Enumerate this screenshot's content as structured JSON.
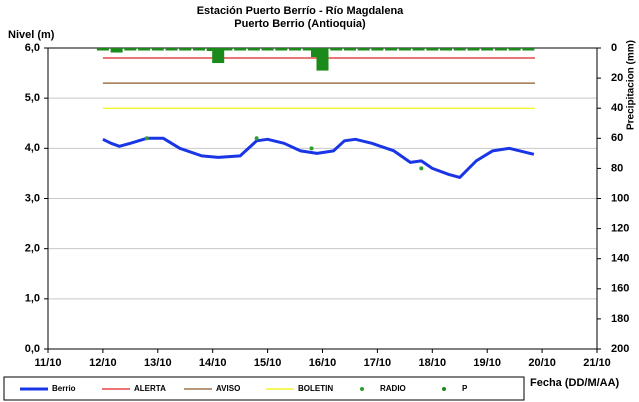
{
  "chart_data": {
    "type": "line",
    "title": "Estación Puerto Berrío - Río Magdalena",
    "subtitle": "Puerto Berrio (Antioquia)",
    "y_label": "Nivel (m)",
    "y2_label": "Precipitacion (mm)",
    "x_label": "Fecha (DD/M/AA)",
    "xlim": [
      11,
      21
    ],
    "xticks": [
      {
        "value": 11,
        "label": "11/10"
      },
      {
        "value": 12,
        "label": "12/10"
      },
      {
        "value": 13,
        "label": "13/10"
      },
      {
        "value": 14,
        "label": "14/10"
      },
      {
        "value": 15,
        "label": "15/10"
      },
      {
        "value": 16,
        "label": "16/10"
      },
      {
        "value": 17,
        "label": "17/10"
      },
      {
        "value": 18,
        "label": "18/10"
      },
      {
        "value": 19,
        "label": "19/10"
      },
      {
        "value": 20,
        "label": "20/10"
      },
      {
        "value": 21,
        "label": "21/10"
      }
    ],
    "ylim": [
      0,
      6
    ],
    "yticks": [
      {
        "value": 0,
        "label": "0,0"
      },
      {
        "value": 1,
        "label": "1,0"
      },
      {
        "value": 2,
        "label": "2,0"
      },
      {
        "value": 3,
        "label": "3,0"
      },
      {
        "value": 4,
        "label": "4,0"
      },
      {
        "value": 5,
        "label": "5,0"
      },
      {
        "value": 6,
        "label": "6,0"
      }
    ],
    "y2lim": [
      0,
      200
    ],
    "y2_reversed": true,
    "y2ticks": [
      0,
      20,
      40,
      60,
      80,
      100,
      120,
      140,
      160,
      180,
      200
    ],
    "grid": true,
    "legend": "bottom",
    "series": [
      {
        "name": "Berrio",
        "color": "#1a35e6",
        "style": "line",
        "width": 3,
        "x": [
          12.0,
          12.15,
          12.3,
          12.5,
          12.8,
          13.1,
          13.4,
          13.8,
          14.1,
          14.5,
          14.8,
          15.0,
          15.3,
          15.6,
          15.9,
          16.2,
          16.4,
          16.6,
          16.9,
          17.3,
          17.6,
          17.8,
          18.0,
          18.3,
          18.5,
          18.8,
          19.1,
          19.4,
          19.7,
          19.85
        ],
        "values": [
          4.18,
          4.1,
          4.04,
          4.1,
          4.2,
          4.2,
          4.0,
          3.85,
          3.82,
          3.85,
          4.15,
          4.18,
          4.1,
          3.95,
          3.9,
          3.95,
          4.15,
          4.18,
          4.1,
          3.95,
          3.72,
          3.75,
          3.6,
          3.48,
          3.42,
          3.75,
          3.95,
          4.0,
          3.92,
          3.88
        ]
      },
      {
        "name": "ALERTA",
        "color": "#e02020",
        "style": "line",
        "width": 1.2,
        "x": [
          12,
          19.87
        ],
        "values": [
          5.8,
          5.8
        ]
      },
      {
        "name": "AVISO",
        "color": "#8b5a2b",
        "style": "line",
        "width": 1.2,
        "x": [
          12,
          19.87
        ],
        "values": [
          5.3,
          5.3
        ]
      },
      {
        "name": "BOLETIN",
        "color": "#f2f200",
        "style": "line",
        "width": 1.2,
        "x": [
          12,
          19.87
        ],
        "values": [
          4.8,
          4.8
        ]
      },
      {
        "name": "RADIO",
        "color": "#2e9e2e",
        "style": "points",
        "x": [
          12.8,
          14.8,
          15.8,
          17.8
        ],
        "values": [
          4.2,
          4.2,
          4.0,
          3.6
        ]
      },
      {
        "name": "P",
        "color": "#1a8a1a",
        "style": "bars",
        "axis": "y2",
        "x": [
          12.0,
          12.25,
          12.5,
          12.75,
          13.0,
          13.25,
          13.5,
          13.75,
          14.0,
          14.1,
          14.25,
          14.5,
          14.75,
          15.0,
          15.25,
          15.5,
          15.75,
          15.9,
          16.0,
          16.25,
          16.5,
          16.75,
          17.0,
          17.25,
          17.5,
          17.75,
          18.0,
          18.25,
          18.5,
          18.75,
          19.0,
          19.25,
          19.5,
          19.75
        ],
        "values": [
          0,
          3,
          0,
          0,
          0,
          0,
          0,
          0,
          2,
          10,
          0,
          0,
          0,
          0,
          0,
          0,
          0,
          6,
          15,
          0,
          0,
          0,
          0,
          0,
          0,
          0,
          0,
          0,
          0,
          0,
          0,
          0,
          0,
          0
        ]
      }
    ]
  }
}
